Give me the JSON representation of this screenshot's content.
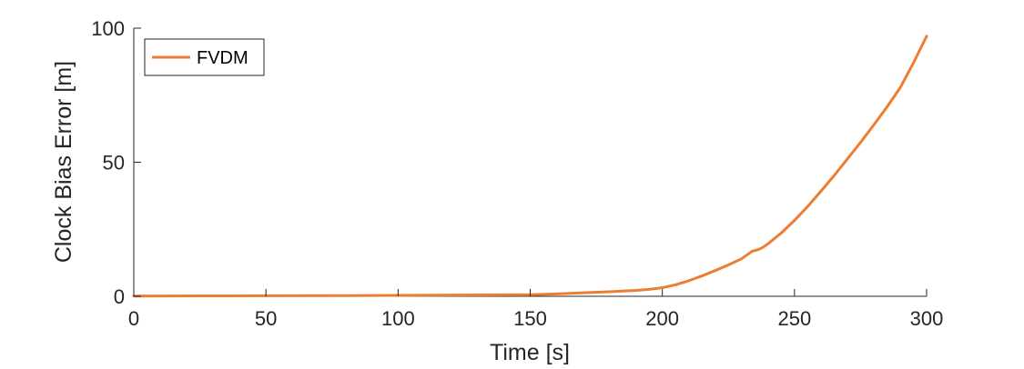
{
  "chart_data": {
    "type": "line",
    "title": "",
    "xlabel": "Time [s]",
    "ylabel": "Clock Bias Error [m]",
    "xlim": [
      0,
      300
    ],
    "ylim": [
      0,
      100
    ],
    "xticks": [
      0,
      50,
      100,
      150,
      200,
      250,
      300
    ],
    "yticks": [
      0,
      50,
      100
    ],
    "xtick_labels": [
      "0",
      "50",
      "100",
      "150",
      "200",
      "250",
      "300"
    ],
    "ytick_labels": [
      "0",
      "50",
      "100"
    ],
    "grid": false,
    "box": "left-bottom",
    "legend": {
      "placement": "top-left",
      "entries": [
        "FVDM"
      ]
    },
    "series": [
      {
        "name": "FVDM",
        "color": "#ED7D31",
        "x": [
          0,
          25,
          50,
          75,
          100,
          125,
          150,
          160,
          170,
          180,
          190,
          195,
          200,
          205,
          210,
          215,
          220,
          225,
          230,
          232,
          234,
          236,
          238,
          240,
          245,
          250,
          255,
          260,
          265,
          270,
          275,
          280,
          285,
          290,
          295,
          300
        ],
        "y": [
          0.1,
          0.15,
          0.2,
          0.25,
          0.35,
          0.45,
          0.6,
          0.9,
          1.3,
          1.7,
          2.2,
          2.6,
          3.2,
          4.3,
          5.8,
          7.6,
          9.6,
          11.7,
          14.0,
          15.4,
          16.8,
          17.3,
          18.2,
          19.6,
          23.6,
          28.3,
          33.5,
          39.2,
          45.0,
          51.2,
          57.4,
          63.9,
          70.6,
          77.8,
          87.0,
          97.0
        ]
      }
    ]
  }
}
